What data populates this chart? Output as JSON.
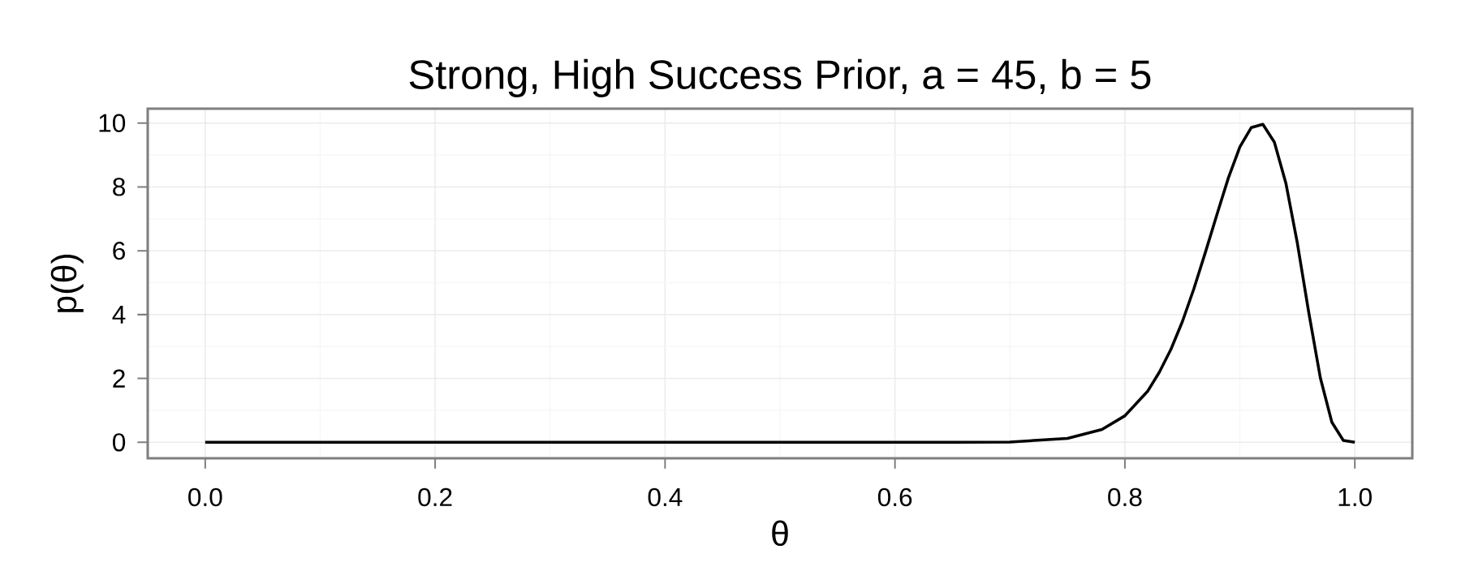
{
  "chart_data": {
    "type": "line",
    "title": "Strong, High Success Prior, a = 45, b = 5",
    "xlabel": "θ",
    "ylabel": "p(θ)",
    "x": [
      0,
      0.1,
      0.2,
      0.3,
      0.4,
      0.5,
      0.6,
      0.65,
      0.7,
      0.75,
      0.78,
      0.8,
      0.82,
      0.83,
      0.84,
      0.85,
      0.86,
      0.87,
      0.88,
      0.89,
      0.9,
      0.91,
      0.92,
      0.93,
      0.94,
      0.95,
      0.96,
      0.97,
      0.98,
      0.99,
      1.0
    ],
    "values": [
      0,
      0,
      0,
      0,
      0,
      0,
      0,
      0,
      0.01,
      0.12,
      0.4,
      0.83,
      1.61,
      2.2,
      2.91,
      3.78,
      4.81,
      5.95,
      7.13,
      8.28,
      9.25,
      9.86,
      9.96,
      9.4,
      8.12,
      6.24,
      4.05,
      2.02,
      0.63,
      0.06,
      0
    ],
    "color": "#000000",
    "line_style": "solid",
    "marker": "none",
    "grid": true,
    "xlim": [
      -0.05,
      1.05
    ],
    "ylim": [
      -0.5,
      10.45
    ],
    "xticks": [
      {
        "value": 0,
        "label": "0.0"
      },
      0.2,
      0.4,
      0.6,
      0.8,
      {
        "value": 1,
        "label": "1.0"
      }
    ],
    "yticks": [
      0,
      2,
      4,
      6,
      8,
      10
    ]
  }
}
